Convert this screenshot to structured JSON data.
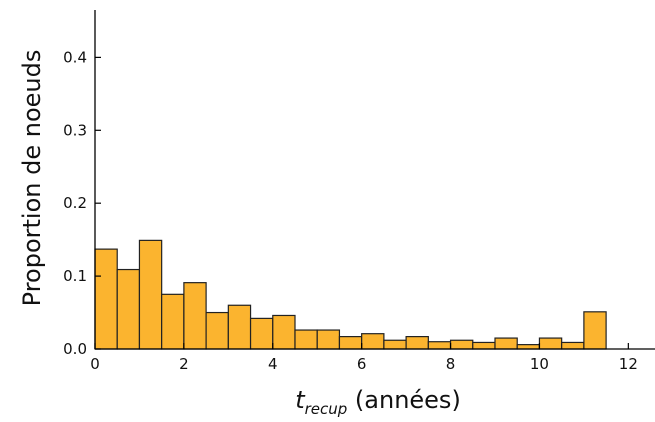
{
  "chart_data": {
    "type": "bar",
    "bar_color": "#fbb42f",
    "bar_edge_color": "#222222",
    "bin_width": 0.5,
    "bins": [
      {
        "x0": 0.0,
        "value": 0.137
      },
      {
        "x0": 0.5,
        "value": 0.109
      },
      {
        "x0": 1.0,
        "value": 0.149
      },
      {
        "x0": 1.5,
        "value": 0.075
      },
      {
        "x0": 2.0,
        "value": 0.091
      },
      {
        "x0": 2.5,
        "value": 0.05
      },
      {
        "x0": 3.0,
        "value": 0.06
      },
      {
        "x0": 3.5,
        "value": 0.042
      },
      {
        "x0": 4.0,
        "value": 0.046
      },
      {
        "x0": 4.5,
        "value": 0.026
      },
      {
        "x0": 5.0,
        "value": 0.026
      },
      {
        "x0": 5.5,
        "value": 0.017
      },
      {
        "x0": 6.0,
        "value": 0.021
      },
      {
        "x0": 6.5,
        "value": 0.012
      },
      {
        "x0": 7.0,
        "value": 0.017
      },
      {
        "x0": 7.5,
        "value": 0.01
      },
      {
        "x0": 8.0,
        "value": 0.012
      },
      {
        "x0": 8.5,
        "value": 0.009
      },
      {
        "x0": 9.0,
        "value": 0.015
      },
      {
        "x0": 9.5,
        "value": 0.006
      },
      {
        "x0": 10.0,
        "value": 0.015
      },
      {
        "x0": 10.5,
        "value": 0.009
      },
      {
        "x0": 11.0,
        "value": 0.051
      }
    ],
    "xlim": [
      0,
      12.6
    ],
    "ylim": [
      0,
      0.465
    ],
    "xticks": [
      {
        "value": 0,
        "label": "0"
      },
      {
        "value": 2,
        "label": "2"
      },
      {
        "value": 4,
        "label": "4"
      },
      {
        "value": 6,
        "label": "6"
      },
      {
        "value": 8,
        "label": "8"
      },
      {
        "value": 10,
        "label": "10"
      },
      {
        "value": 12,
        "label": "12"
      }
    ],
    "yticks": [
      {
        "value": 0.0,
        "label": "0.0"
      },
      {
        "value": 0.1,
        "label": "0.1"
      },
      {
        "value": 0.2,
        "label": "0.2"
      },
      {
        "value": 0.3,
        "label": "0.3"
      },
      {
        "value": 0.4,
        "label": "0.4"
      }
    ],
    "xlabel": {
      "base": "t",
      "subscript": "recup",
      "rest": " (années)"
    },
    "ylabel": "Proportion de noeuds",
    "grid": false
  }
}
